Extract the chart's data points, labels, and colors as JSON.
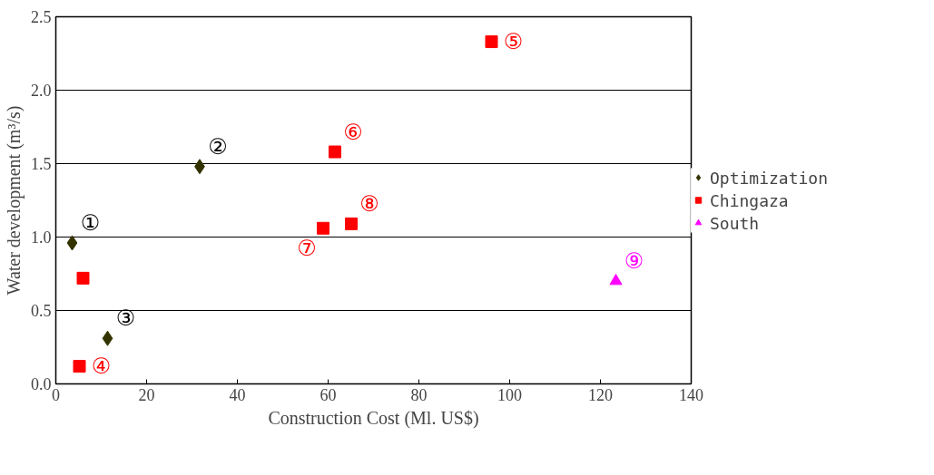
{
  "chart_data": {
    "type": "scatter",
    "xlabel": "Construction Cost (Ml. US$)",
    "ylabel": "Water development (m³/s)",
    "xlim": [
      0,
      140
    ],
    "xticks": [
      0,
      20,
      40,
      60,
      80,
      100,
      120,
      140
    ],
    "ylim": [
      0,
      2.5
    ],
    "yticks": [
      {
        "value": 0,
        "label": "0.0"
      },
      {
        "value": 0.5,
        "label": "0.5"
      },
      {
        "value": 1.0,
        "label": "1.0"
      },
      {
        "value": 1.5,
        "label": "1.5"
      },
      {
        "value": 2.0,
        "label": "2.0"
      },
      {
        "value": 2.5,
        "label": "2.5"
      }
    ],
    "grid": "y",
    "legend": "right",
    "series": [
      {
        "name": "Optimization",
        "color": "#333300",
        "marker": "diamond",
        "x": [
          3.6,
          31.7,
          11.4
        ],
        "values": [
          0.96,
          1.48,
          0.31
        ]
      },
      {
        "name": "Chingaza",
        "color": "#ff0000",
        "marker": "square",
        "x": [
          96,
          61.5,
          58.9,
          65.1,
          6.0,
          5.2
        ],
        "values": [
          2.33,
          1.58,
          1.06,
          1.09,
          0.72,
          0.12
        ]
      },
      {
        "name": "South",
        "color": "#ff00ff",
        "marker": "triangle",
        "x": [
          123.4
        ],
        "values": [
          0.7
        ]
      }
    ],
    "annotations": [
      {
        "text": "①",
        "x": 3.6,
        "y": 0.96
      },
      {
        "text": "②",
        "x": 31.7,
        "y": 1.48
      },
      {
        "text": "③",
        "x": 11.4,
        "y": 0.31
      },
      {
        "text": "④",
        "x": 5.2,
        "y": 0.12
      },
      {
        "text": "⑤",
        "x": 96,
        "y": 2.33
      },
      {
        "text": "⑥",
        "x": 61.5,
        "y": 1.58
      },
      {
        "text": "⑦",
        "x": 58.9,
        "y": 1.06
      },
      {
        "text": "⑧",
        "x": 65.1,
        "y": 1.09
      },
      {
        "text": "⑨",
        "x": 123.4,
        "y": 0.7
      }
    ]
  }
}
